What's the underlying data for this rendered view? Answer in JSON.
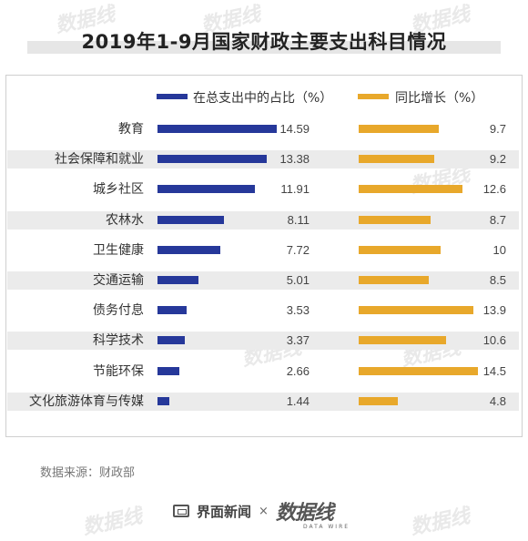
{
  "title": "2019年1-9月国家财政主要支出科目情况",
  "source": "数据来源：财政部",
  "brand": {
    "left": "界面新闻",
    "sep": "×",
    "right": "数据线",
    "right_sub": "DATA WIRE"
  },
  "watermark": "数据线",
  "colors": {
    "share": "#26389a",
    "growth": "#e8a82b",
    "stripe": "#ebebeb"
  },
  "chart_data": {
    "type": "bar",
    "orientation": "horizontal",
    "categories": [
      "教育",
      "社会保障和就业",
      "城乡社区",
      "农林水",
      "卫生健康",
      "交通运输",
      "债务付息",
      "科学技术",
      "节能环保",
      "文化旅游体育与传媒"
    ],
    "series": [
      {
        "name": "在总支出中的占比（%）",
        "values": [
          14.59,
          13.38,
          11.91,
          8.11,
          7.72,
          5.01,
          3.53,
          3.37,
          2.66,
          1.44
        ],
        "labels": [
          "14.59",
          "13.38",
          "11.91",
          "8.11",
          "7.72",
          "5.01",
          "3.53",
          "3.37",
          "2.66",
          "1.44"
        ]
      },
      {
        "name": "同比增长（%）",
        "values": [
          9.7,
          9.2,
          12.6,
          8.7,
          10,
          8.5,
          13.9,
          10.6,
          14.5,
          4.8
        ],
        "labels": [
          "9.7",
          "9.2",
          "12.6",
          "8.7",
          "10",
          "8.5",
          "13.9",
          "10.6",
          "14.5",
          "4.8"
        ]
      }
    ],
    "grid": false,
    "legend_position": "top"
  }
}
